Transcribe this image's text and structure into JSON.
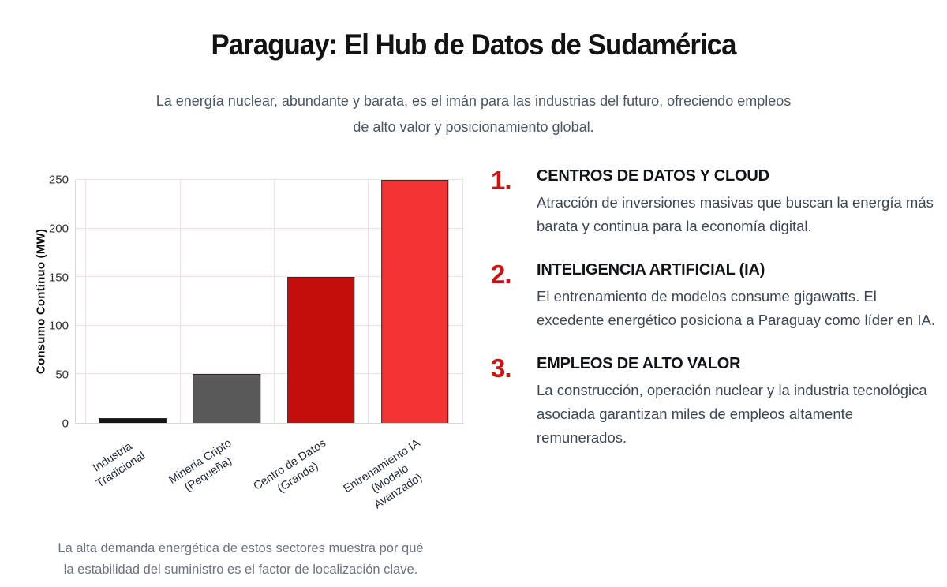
{
  "page": {
    "title": "Paraguay: El Hub de Datos de Sudamérica",
    "subtitle": "La energía nuclear, abundante y barata, es el imán para las industrias del futuro, ofreciendo empleos\nde alto valor y posicionamiento global.",
    "caption": "La alta demanda energética de estos sectores muestra por qué\nla estabilidad del suministro es el factor de localización clave."
  },
  "colors": {
    "accent_red": "#c81414",
    "grid": "#f3dede",
    "axis": "#d6d6d6"
  },
  "chart_data": {
    "type": "bar",
    "title": "",
    "xlabel": "",
    "ylabel": "Consumo Continuo (MW)",
    "categories": [
      "Industria\nTradicional",
      "Minería Cripto\n(Pequeña)",
      "Centro de Datos\n(Grande)",
      "Entrenamiento IA\n(Modelo\nAvanzado)"
    ],
    "values": [
      5,
      50,
      150,
      250
    ],
    "bar_colors": [
      "#141414",
      "#595959",
      "#c40d0d",
      "#f43434"
    ],
    "yticks": [
      0,
      50,
      100,
      150,
      200,
      250
    ],
    "ylim": [
      0,
      250
    ],
    "grid": true,
    "legend_position": "none"
  },
  "sectors": {
    "items": [
      {
        "number": "1.",
        "heading": "CENTROS DE DATOS Y CLOUD",
        "body": "Atracción de inversiones masivas que buscan la energía más barata y continua para la economía digital."
      },
      {
        "number": "2.",
        "heading": "INTELIGENCIA ARTIFICIAL (IA)",
        "body": "El entrenamiento de modelos consume gigawatts. El excedente energético posiciona a Paraguay como líder en IA."
      },
      {
        "number": "3.",
        "heading": "EMPLEOS DE ALTO VALOR",
        "body": "La construcción, operación nuclear y la industria tecnológica asociada garantizan miles de empleos altamente remunerados."
      }
    ]
  }
}
